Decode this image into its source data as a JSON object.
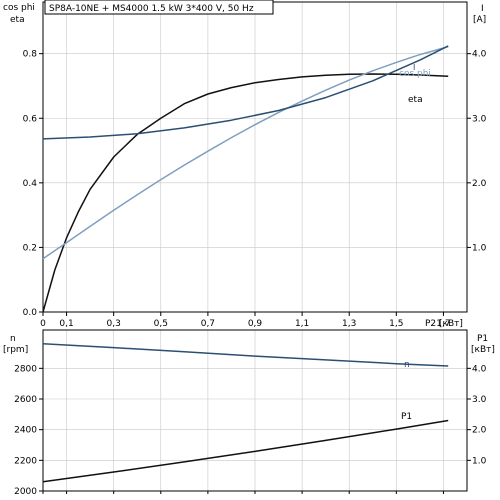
{
  "chart_data": [
    {
      "type": "line",
      "title": "SP8A-10NE + MS4000   1.5 kW   3*400 V, 50 Hz",
      "xlabel": "P2 [кВт]",
      "xlim": [
        0,
        1.8
      ],
      "x_ticks": [
        0,
        0.1,
        0.3,
        0.5,
        0.7,
        0.9,
        1.1,
        1.3,
        1.5,
        1.7
      ],
      "x_tick_labels": [
        "0",
        "0,1",
        "0,3",
        "0,5",
        "0,7",
        "0,9",
        "1,1",
        "1,3",
        "1,5",
        "1,7"
      ],
      "left_axis": {
        "label_line1": "cos phi",
        "label_line2": "eta",
        "ylim": [
          0,
          0.96
        ],
        "ticks": [
          0,
          0.2,
          0.4,
          0.6,
          0.8
        ],
        "tick_labels": [
          "0.0",
          "0.2",
          "0.4",
          "0.6",
          "0.8"
        ]
      },
      "right_axis": {
        "label_line1": "I",
        "label_line2": "[A]",
        "ylim": [
          0,
          4.8
        ],
        "ticks": [
          1,
          2,
          3,
          4
        ],
        "tick_labels": [
          "1.0",
          "2.0",
          "3.0",
          "4.0"
        ]
      },
      "grid": true,
      "series": [
        {
          "name": "eta",
          "axis": "left",
          "color": "#111111",
          "x": [
            0,
            0.05,
            0.1,
            0.15,
            0.2,
            0.3,
            0.4,
            0.5,
            0.6,
            0.7,
            0.8,
            0.9,
            1.0,
            1.1,
            1.2,
            1.3,
            1.4,
            1.5,
            1.6,
            1.72
          ],
          "y": [
            0,
            0.13,
            0.23,
            0.31,
            0.38,
            0.48,
            0.55,
            0.6,
            0.645,
            0.675,
            0.695,
            0.71,
            0.72,
            0.728,
            0.733,
            0.736,
            0.737,
            0.736,
            0.734,
            0.73
          ]
        },
        {
          "name": "cos phi",
          "axis": "left",
          "color": "#7f9fc0",
          "x": [
            0,
            0.1,
            0.2,
            0.3,
            0.4,
            0.5,
            0.6,
            0.7,
            0.8,
            0.9,
            1.0,
            1.1,
            1.2,
            1.3,
            1.4,
            1.5,
            1.6,
            1.72
          ],
          "y": [
            0.165,
            0.215,
            0.265,
            0.315,
            0.363,
            0.41,
            0.455,
            0.498,
            0.54,
            0.58,
            0.618,
            0.653,
            0.687,
            0.718,
            0.747,
            0.773,
            0.797,
            0.822
          ]
        },
        {
          "name": "I",
          "axis": "right",
          "color": "#2b4f73",
          "x": [
            0,
            0.2,
            0.4,
            0.6,
            0.8,
            1.0,
            1.2,
            1.4,
            1.6,
            1.72
          ],
          "y": [
            2.68,
            2.71,
            2.76,
            2.85,
            2.97,
            3.12,
            3.32,
            3.58,
            3.9,
            4.12
          ]
        }
      ]
    },
    {
      "type": "line",
      "xlim": [
        0,
        1.8
      ],
      "left_axis": {
        "label_line1": "n",
        "label_line2": "[rpm]",
        "ylim": [
          2000,
          3050
        ],
        "ticks": [
          2000,
          2200,
          2400,
          2600,
          2800
        ],
        "tick_labels": [
          "2000",
          "2200",
          "2400",
          "2600",
          "2800"
        ]
      },
      "right_axis": {
        "label_line1": "P1",
        "label_line2": "[кВт]",
        "ylim": [
          0,
          5.25
        ],
        "ticks": [
          1,
          2,
          3,
          4
        ],
        "tick_labels": [
          "1.0",
          "2.0",
          "3.0",
          "4.0"
        ]
      },
      "grid": true,
      "series": [
        {
          "name": "n",
          "axis": "left",
          "color": "#2b4f73",
          "x": [
            0,
            0.3,
            0.6,
            0.9,
            1.2,
            1.5,
            1.72
          ],
          "y": [
            2960,
            2935,
            2908,
            2880,
            2855,
            2830,
            2815
          ]
        },
        {
          "name": "P1",
          "axis": "right",
          "color": "#111111",
          "x": [
            0,
            0.3,
            0.6,
            0.9,
            1.2,
            1.5,
            1.72
          ],
          "y": [
            0.3,
            0.62,
            0.95,
            1.29,
            1.65,
            2.02,
            2.3
          ]
        }
      ]
    }
  ]
}
